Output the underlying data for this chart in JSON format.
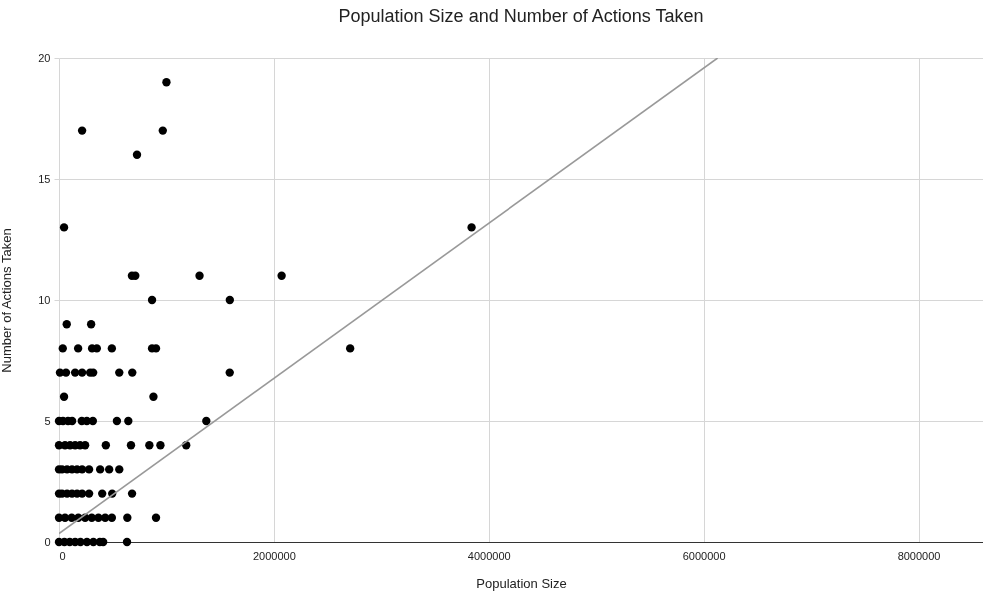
{
  "chart_data": {
    "type": "scatter",
    "title": "Population Size and Number of Actions Taken",
    "xlabel": "Population Size",
    "ylabel": "Number of Actions Taken",
    "xlim": [
      0,
      8600000
    ],
    "xticks": [
      0,
      2000000,
      4000000,
      6000000,
      8000000
    ],
    "ylim": [
      0,
      20
    ],
    "yticks": [
      0,
      5,
      10,
      15,
      20
    ],
    "grid": true,
    "series": [
      {
        "color": "#000000",
        "marker": "circle",
        "x": [
          1000000,
          966000,
          215000,
          726000,
          47000,
          3840000,
          679000,
          710000,
          1308000,
          2072000,
          866000,
          1590000,
          72000,
          299000,
          35000,
          178000,
          308000,
          352000,
          492000,
          866000,
          903000,
          2710000,
          9000,
          65000,
          150000,
          215000,
          290000,
          318000,
          561000,
          682000,
          1589000,
          47000,
          879000,
          0,
          37000,
          84000,
          122000,
          212000,
          259000,
          315000,
          539000,
          645000,
          1371000,
          0,
          56000,
          103000,
          150000,
          196000,
          243000,
          436000,
          670000,
          841000,
          944000,
          1184000,
          0,
          28000,
          75000,
          121000,
          168000,
          215000,
          280000,
          383000,
          467000,
          561000,
          0,
          28000,
          75000,
          121000,
          168000,
          215000,
          280000,
          402000,
          495000,
          680000,
          0,
          56000,
          118000,
          180000,
          243000,
          305000,
          367000,
          430000,
          492000,
          636000,
          903000,
          0,
          50000,
          100000,
          150000,
          200000,
          260000,
          320000,
          380000,
          411000,
          633000
        ],
        "values": [
          19,
          17,
          17,
          16,
          13,
          13,
          11,
          11,
          11,
          11,
          10,
          10,
          9,
          9,
          8,
          8,
          8,
          8,
          8,
          8,
          8,
          8,
          7,
          7,
          7,
          7,
          7,
          7,
          7,
          7,
          7,
          6,
          6,
          5,
          5,
          5,
          5,
          5,
          5,
          5,
          5,
          5,
          5,
          4,
          4,
          4,
          4,
          4,
          4,
          4,
          4,
          4,
          4,
          4,
          3,
          3,
          3,
          3,
          3,
          3,
          3,
          3,
          3,
          3,
          2,
          2,
          2,
          2,
          2,
          2,
          2,
          2,
          2,
          2,
          1,
          1,
          1,
          1,
          1,
          1,
          1,
          1,
          1,
          1,
          1,
          0,
          0,
          0,
          0,
          0,
          0,
          0,
          0,
          0,
          0
        ]
      },
      {
        "type": "line",
        "color": "#999999",
        "x": [
          0,
          6130000
        ],
        "values": [
          0.35,
          20
        ]
      }
    ]
  }
}
